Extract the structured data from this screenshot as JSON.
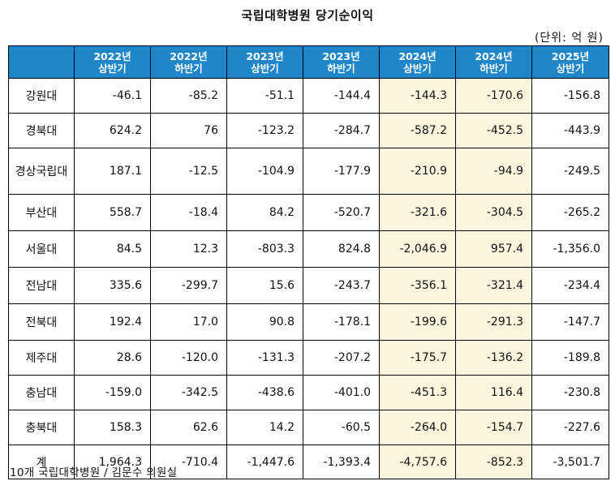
{
  "title": "국립대학병원 당기순이익",
  "unit": "(단위: 억 원)",
  "columns": [
    {
      "year": "2022년",
      "half": "상반기"
    },
    {
      "year": "2022년",
      "half": "하반기"
    },
    {
      "year": "2023년",
      "half": "상반기"
    },
    {
      "year": "2023년",
      "half": "하반기"
    },
    {
      "year": "2024년",
      "half": "상반기"
    },
    {
      "year": "2024년",
      "half": "하반기"
    },
    {
      "year": "2025년",
      "half": "상반기"
    }
  ],
  "highlight_color": "#fdf6de",
  "header_color": "#1f87c9",
  "rows": [
    {
      "name": "강원대",
      "values": [
        "-46.1",
        "-85.2",
        "-51.1",
        "-144.4",
        "-144.3",
        "-170.6",
        "-156.8"
      ]
    },
    {
      "name": "경북대",
      "values": [
        "624.2",
        "76",
        "-123.2",
        "-284.7",
        "-587.2",
        "-452.5",
        "-443.9"
      ]
    },
    {
      "name": "경상국립대",
      "values": [
        "187.1",
        "-12.5",
        "-104.9",
        "-177.9",
        "-210.9",
        "-94.9",
        "-249.5"
      ]
    },
    {
      "name": "부산대",
      "values": [
        "558.7",
        "-18.4",
        "84.2",
        "-520.7",
        "-321.6",
        "-304.5",
        "-265.2"
      ]
    },
    {
      "name": "서울대",
      "values": [
        "84.5",
        "12.3",
        "-803.3",
        "824.8",
        "-2,046.9",
        "957.4",
        "-1,356.0"
      ]
    },
    {
      "name": "전남대",
      "values": [
        "335.6",
        "-299.7",
        "15.6",
        "-243.7",
        "-356.1",
        "-321.4",
        "-234.4"
      ]
    },
    {
      "name": "전북대",
      "values": [
        "192.4",
        "17.0",
        "90.8",
        "-178.1",
        "-199.6",
        "-291.3",
        "-147.7"
      ]
    },
    {
      "name": "제주대",
      "values": [
        "28.6",
        "-120.0",
        "-131.3",
        "-207.2",
        "-175.7",
        "-136.2",
        "-189.8"
      ]
    },
    {
      "name": "충남대",
      "values": [
        "-159.0",
        "-342.5",
        "-438.6",
        "-401.0",
        "-451.3",
        "116.4",
        "-230.8"
      ]
    },
    {
      "name": "충북대",
      "values": [
        "158.3",
        "62.6",
        "14.2",
        "-60.5",
        "-264.0",
        "-154.7",
        "-227.6"
      ]
    },
    {
      "name": "계",
      "values": [
        "1,964.3",
        "-710.4",
        "-1,447.6",
        "-1,393.4",
        "-4,757.6",
        "-852.3",
        "-3,501.7"
      ]
    }
  ],
  "footnote": "10개 국립대학병원 / 김문수 의원실"
}
